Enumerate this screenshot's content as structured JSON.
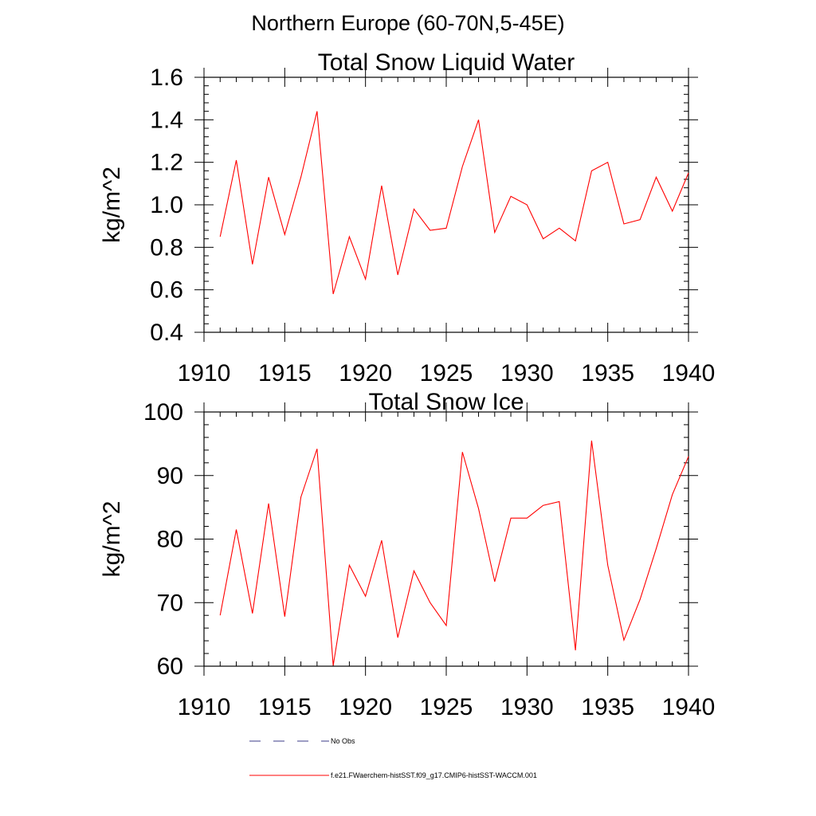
{
  "page_title": "Northern Europe (60-70N,5-45E)",
  "chart_data": [
    {
      "type": "line",
      "title": "Total Snow Liquid Water",
      "xlabel": "",
      "ylabel": "kg/m^2",
      "xlim": [
        1910,
        1940
      ],
      "ylim": [
        0.4,
        1.6
      ],
      "xticks": [
        1910,
        1915,
        1920,
        1925,
        1930,
        1935,
        1940
      ],
      "xtick_labels": [
        "1910",
        "1915",
        "1920",
        "1925",
        "1930",
        "1935",
        "1940"
      ],
      "yticks": [
        0.4,
        0.6,
        0.8,
        1.0,
        1.2,
        1.4,
        1.6
      ],
      "ytick_labels": [
        "0.4",
        "0.6",
        "0.8",
        "1.0",
        "1.2",
        "1.4",
        "1.6"
      ],
      "grid": false,
      "x": [
        1911,
        1912,
        1913,
        1914,
        1915,
        1916,
        1917,
        1918,
        1919,
        1920,
        1921,
        1922,
        1923,
        1924,
        1925,
        1926,
        1927,
        1928,
        1929,
        1930,
        1931,
        1932,
        1933,
        1934,
        1935,
        1936,
        1937,
        1938,
        1939,
        1940
      ],
      "series": [
        {
          "name": "f.e21.FWaerchem-histSST.f09_g17.CMIP6-histSST-WACCM.001",
          "color": "#ff0000",
          "values": [
            0.85,
            1.21,
            0.72,
            1.13,
            0.86,
            1.13,
            1.44,
            0.58,
            0.85,
            0.65,
            1.09,
            0.67,
            0.98,
            0.88,
            0.89,
            1.18,
            1.4,
            0.87,
            1.04,
            1.0,
            0.84,
            0.89,
            0.83,
            1.16,
            1.2,
            0.91,
            0.93,
            1.13,
            0.97,
            1.15
          ]
        }
      ]
    },
    {
      "type": "line",
      "title": "Total Snow Ice",
      "xlabel": "",
      "ylabel": "kg/m^2",
      "xlim": [
        1910,
        1940
      ],
      "ylim": [
        60,
        100
      ],
      "xticks": [
        1910,
        1915,
        1920,
        1925,
        1930,
        1935,
        1940
      ],
      "xtick_labels": [
        "1910",
        "1915",
        "1920",
        "1925",
        "1930",
        "1935",
        "1940"
      ],
      "yticks": [
        60,
        70,
        80,
        90,
        100
      ],
      "ytick_labels": [
        "60",
        "70",
        "80",
        "90",
        "100"
      ],
      "grid": false,
      "x": [
        1911,
        1912,
        1913,
        1914,
        1915,
        1916,
        1917,
        1918,
        1919,
        1920,
        1921,
        1922,
        1923,
        1924,
        1925,
        1926,
        1927,
        1928,
        1929,
        1930,
        1931,
        1932,
        1933,
        1934,
        1935,
        1936,
        1937,
        1938,
        1939,
        1940
      ],
      "series": [
        {
          "name": "f.e21.FWaerchem-histSST.f09_g17.CMIP6-histSST-WACCM.001",
          "color": "#ff0000",
          "values": [
            68.0,
            81.5,
            68.3,
            85.6,
            67.8,
            86.6,
            94.2,
            60.1,
            75.9,
            71.0,
            79.8,
            64.5,
            75.0,
            70.0,
            66.4,
            93.7,
            84.8,
            73.3,
            83.3,
            83.3,
            85.3,
            85.9,
            62.5,
            95.5,
            75.9,
            64.1,
            70.5,
            78.5,
            87.0,
            93.0
          ]
        }
      ]
    }
  ],
  "legend": {
    "entries": [
      {
        "label": "No Obs",
        "color": "#3b3b8a",
        "style": "dashed"
      },
      {
        "label": "f.e21.FWaerchem-histSST.f09_g17.CMIP6-histSST-WACCM.001",
        "color": "#ff0000",
        "style": "solid"
      }
    ]
  }
}
